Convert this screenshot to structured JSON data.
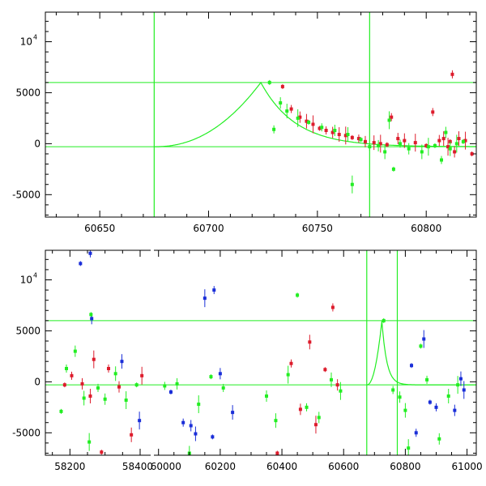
{
  "chart_data": [
    {
      "type": "scatter",
      "name": "top-panel",
      "xlim": [
        60625,
        60823
      ],
      "ylim": [
        -7200,
        12900
      ],
      "xticks": [
        60650,
        60700,
        60750,
        60800
      ],
      "yticks": [
        -5000,
        0,
        5000
      ],
      "ytick_top": {
        "base": "10",
        "exp": "4",
        "value": 10000
      },
      "colors": {
        "red": "#dd1c2c",
        "green": "#22ee22",
        "blue": "#1a2ed8",
        "line": "#22ee22"
      },
      "guide_lines": {
        "vertical": [
          60675,
          60774
        ],
        "horizontal": [
          6000,
          -300
        ]
      },
      "model_curve": {
        "start": 60675,
        "peak_x": 60724,
        "peak_y": 6000,
        "baseline": -300
      },
      "series": [
        {
          "name": "red",
          "color": "#dd1c2c",
          "points": [
            [
              60734,
              5600
            ],
            [
              60738,
              3400
            ],
            [
              60742,
              2600
            ],
            [
              60745,
              2200
            ],
            [
              60748,
              1900
            ],
            [
              60751,
              1500
            ],
            [
              60754,
              1300
            ],
            [
              60757,
              1100
            ],
            [
              60760,
              900
            ],
            [
              60763,
              800
            ],
            [
              60766,
              600
            ],
            [
              60769,
              500
            ],
            [
              60772,
              200
            ],
            [
              60776,
              100
            ],
            [
              60779,
              0
            ],
            [
              60782,
              -100
            ],
            [
              60784,
              2600
            ],
            [
              60787,
              500
            ],
            [
              60790,
              300
            ],
            [
              60795,
              100
            ],
            [
              60800,
              -200
            ],
            [
              60803,
              3100
            ],
            [
              60806,
              300
            ],
            [
              60808,
              500
            ],
            [
              60810,
              -300
            ],
            [
              60811,
              200
            ],
            [
              60812,
              6800
            ],
            [
              60813,
              -800
            ],
            [
              60815,
              500
            ],
            [
              60818,
              300
            ],
            [
              60821,
              -1000
            ]
          ]
        },
        {
          "name": "green",
          "color": "#22ee22",
          "points": [
            [
              60728,
              6000
            ],
            [
              60730,
              1400
            ],
            [
              60733,
              4000
            ],
            [
              60736,
              3200
            ],
            [
              60741,
              2500
            ],
            [
              60746,
              2100
            ],
            [
              60752,
              1600
            ],
            [
              60758,
              1300
            ],
            [
              60764,
              900
            ],
            [
              60766,
              -4000
            ],
            [
              60770,
              400
            ],
            [
              60774,
              -300
            ],
            [
              60778,
              -200
            ],
            [
              60781,
              -800
            ],
            [
              60783,
              2300
            ],
            [
              60785,
              -2500
            ],
            [
              60788,
              0
            ],
            [
              60792,
              -500
            ],
            [
              60798,
              -800
            ],
            [
              60801,
              -300
            ],
            [
              60804,
              -200
            ],
            [
              60807,
              -1600
            ],
            [
              60809,
              1100
            ],
            [
              60811,
              -500
            ],
            [
              60814,
              0
            ],
            [
              60817,
              200
            ]
          ]
        }
      ]
    },
    {
      "type": "scatter",
      "name": "bottom-panel",
      "xlim": [
        58130,
        61030
      ],
      "ylim": [
        -7200,
        12900
      ],
      "xticks": [
        58200,
        58400,
        60000,
        60200,
        60400,
        60600,
        60800,
        61000
      ],
      "yticks": [
        -5000,
        0,
        5000
      ],
      "ytick_top": {
        "base": "10",
        "exp": "4",
        "value": 10000
      },
      "segments": [
        {
          "xlim": [
            58130,
            58430
          ],
          "xticks": [
            58200,
            58400
          ]
        },
        {
          "xlim": [
            59985,
            61030
          ],
          "xticks": [
            60000,
            60200,
            60400,
            60600,
            60800,
            61000
          ]
        }
      ],
      "guide_lines": {
        "vertical": [
          60675,
          60774
        ],
        "horizontal": [
          6000,
          -300
        ]
      },
      "model_curve": {
        "start": 60675,
        "peak_x": 60724,
        "peak_y": 6000,
        "baseline": -300
      },
      "series": [
        {
          "name": "blue",
          "color": "#1a2ed8",
          "points": [
            [
              58230,
              11600
            ],
            [
              58258,
              12600
            ],
            [
              58262,
              6200
            ],
            [
              58348,
              2000
            ],
            [
              58398,
              -3800
            ],
            [
              60040,
              -1000
            ],
            [
              60080,
              -4000
            ],
            [
              60105,
              -4300
            ],
            [
              60120,
              -5100
            ],
            [
              60150,
              8200
            ],
            [
              60175,
              -5400
            ],
            [
              60180,
              9000
            ],
            [
              60200,
              800
            ],
            [
              60240,
              -3000
            ],
            [
              60860,
              4200
            ],
            [
              60880,
              -2000
            ],
            [
              60900,
              -2500
            ],
            [
              60960,
              -2800
            ],
            [
              60980,
              300
            ],
            [
              60990,
              -800
            ],
            [
              60820,
              1600
            ],
            [
              60835,
              -5000
            ]
          ]
        },
        {
          "name": "green",
          "color": "#22ee22",
          "points": [
            [
              58175,
              -2900
            ],
            [
              58190,
              1300
            ],
            [
              58215,
              3000
            ],
            [
              58240,
              -1600
            ],
            [
              58255,
              -5900
            ],
            [
              58260,
              6600
            ],
            [
              58280,
              -600
            ],
            [
              58300,
              -1700
            ],
            [
              58330,
              800
            ],
            [
              58360,
              -1800
            ],
            [
              58390,
              -300
            ],
            [
              60020,
              -400
            ],
            [
              60060,
              -200
            ],
            [
              60100,
              -7000
            ],
            [
              60130,
              -2200
            ],
            [
              60170,
              500
            ],
            [
              60210,
              -600
            ],
            [
              60350,
              -1400
            ],
            [
              60380,
              -3800
            ],
            [
              60420,
              700
            ],
            [
              60450,
              8500
            ],
            [
              60480,
              -2500
            ],
            [
              60520,
              -3500
            ],
            [
              60560,
              200
            ],
            [
              60590,
              -900
            ],
            [
              60730,
              6000
            ],
            [
              60760,
              -800
            ],
            [
              60782,
              -1500
            ],
            [
              60800,
              -2800
            ],
            [
              60810,
              -6500
            ],
            [
              60850,
              3500
            ],
            [
              60870,
              200
            ],
            [
              60910,
              -5600
            ],
            [
              60940,
              -1400
            ],
            [
              60970,
              -300
            ]
          ]
        },
        {
          "name": "red",
          "color": "#dd1c2c",
          "points": [
            [
              58185,
              -300
            ],
            [
              58205,
              600
            ],
            [
              58235,
              -200
            ],
            [
              58258,
              -1400
            ],
            [
              58268,
              2200
            ],
            [
              58290,
              -6900
            ],
            [
              58310,
              1300
            ],
            [
              58340,
              -500
            ],
            [
              58375,
              -5200
            ],
            [
              58405,
              600
            ],
            [
              60385,
              -7000
            ],
            [
              60430,
              1800
            ],
            [
              60460,
              -2700
            ],
            [
              60490,
              3900
            ],
            [
              60510,
              -4200
            ],
            [
              60540,
              1200
            ],
            [
              60565,
              7300
            ],
            [
              60580,
              -300
            ]
          ]
        }
      ]
    }
  ]
}
